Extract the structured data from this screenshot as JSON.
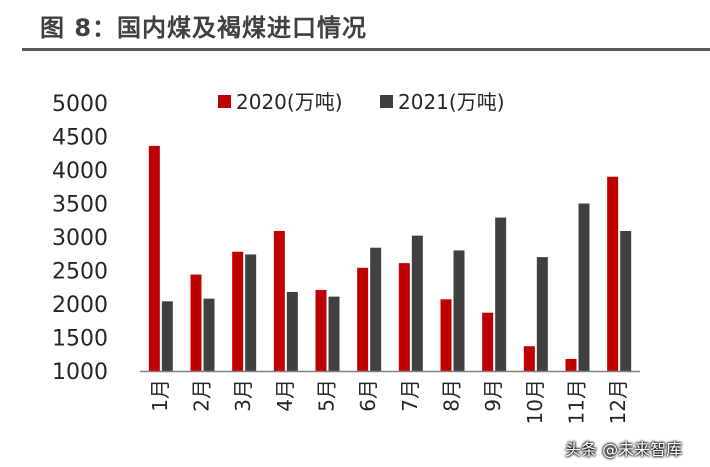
{
  "header": {
    "title": "图 8：国内煤及褐煤进口情况"
  },
  "watermark": "头条 @未来智库",
  "chart_data": {
    "type": "bar",
    "categories": [
      "1月",
      "2月",
      "3月",
      "4月",
      "5月",
      "6月",
      "7月",
      "8月",
      "9月",
      "10月",
      "11月",
      "12月"
    ],
    "series": [
      {
        "name": "2020(万吨)",
        "color": "#c00000",
        "values": [
          4360,
          2440,
          2780,
          3090,
          2210,
          2540,
          2610,
          2070,
          1870,
          1370,
          1180,
          3900
        ]
      },
      {
        "name": "2021(万吨)",
        "color": "#404040",
        "values": [
          2040,
          2080,
          2740,
          2180,
          2110,
          2840,
          3020,
          2800,
          3290,
          2700,
          3500,
          3090
        ]
      }
    ],
    "ylim": [
      1000,
      5000
    ],
    "yticks": [
      1000,
      1500,
      2000,
      2500,
      3000,
      3500,
      4000,
      4500,
      5000
    ],
    "legend_position": "top",
    "grid": false
  }
}
